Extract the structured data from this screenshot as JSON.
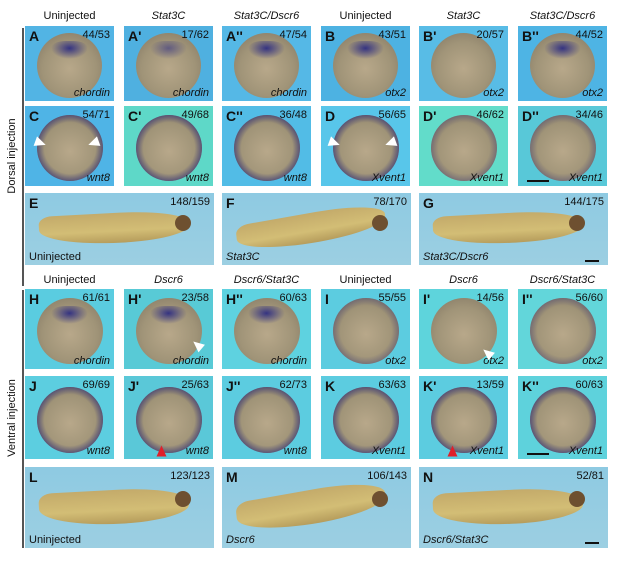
{
  "dorsal": {
    "section_label": "Dorsal injection",
    "column_headers": [
      "Uninjected",
      "Stat3C",
      "Stat3C/Dscr6",
      "Uninjected",
      "Stat3C",
      "Stat3C/Dscr6"
    ],
    "embryo_panels": [
      {
        "letter": "A",
        "count": "44/53",
        "gene": "chordin"
      },
      {
        "letter": "A'",
        "count": "17/62",
        "gene": "chordin"
      },
      {
        "letter": "A''",
        "count": "47/54",
        "gene": "chordin"
      },
      {
        "letter": "B",
        "count": "43/51",
        "gene": "otx2"
      },
      {
        "letter": "B'",
        "count": "20/57",
        "gene": "otx2"
      },
      {
        "letter": "B''",
        "count": "44/52",
        "gene": "otx2"
      },
      {
        "letter": "C",
        "count": "54/71",
        "gene": "wnt8"
      },
      {
        "letter": "C'",
        "count": "49/68",
        "gene": "wnt8"
      },
      {
        "letter": "C''",
        "count": "36/48",
        "gene": "wnt8"
      },
      {
        "letter": "D",
        "count": "56/65",
        "gene": "Xvent1"
      },
      {
        "letter": "D'",
        "count": "46/62",
        "gene": "Xvent1"
      },
      {
        "letter": "D''",
        "count": "34/46",
        "gene": "Xvent1"
      }
    ],
    "tadpole_panels": [
      {
        "letter": "E",
        "count": "148/159",
        "label": "Uninjected"
      },
      {
        "letter": "F",
        "count": "78/170",
        "label": "Stat3C"
      },
      {
        "letter": "G",
        "count": "144/175",
        "label": "Stat3C/Dscr6"
      }
    ]
  },
  "ventral": {
    "section_label": "Ventral injection",
    "column_headers": [
      "Uninjected",
      "Dscr6",
      "Dscr6/Stat3C",
      "Uninjected",
      "Dscr6",
      "Dscr6/Stat3C"
    ],
    "embryo_panels": [
      {
        "letter": "H",
        "count": "61/61",
        "gene": "chordin"
      },
      {
        "letter": "H'",
        "count": "23/58",
        "gene": "chordin"
      },
      {
        "letter": "H''",
        "count": "60/63",
        "gene": "chordin"
      },
      {
        "letter": "I",
        "count": "55/55",
        "gene": "otx2"
      },
      {
        "letter": "I'",
        "count": "14/56",
        "gene": "otx2"
      },
      {
        "letter": "I''",
        "count": "56/60",
        "gene": "otx2"
      },
      {
        "letter": "J",
        "count": "69/69",
        "gene": "wnt8"
      },
      {
        "letter": "J'",
        "count": "25/63",
        "gene": "wnt8"
      },
      {
        "letter": "J''",
        "count": "62/73",
        "gene": "wnt8"
      },
      {
        "letter": "K",
        "count": "63/63",
        "gene": "Xvent1"
      },
      {
        "letter": "K'",
        "count": "13/59",
        "gene": "Xvent1"
      },
      {
        "letter": "K''",
        "count": "60/63",
        "gene": "Xvent1"
      }
    ],
    "tadpole_panels": [
      {
        "letter": "L",
        "count": "123/123",
        "label": "Uninjected"
      },
      {
        "letter": "M",
        "count": "106/143",
        "label": "Dscr6"
      },
      {
        "letter": "N",
        "count": "52/81",
        "label": "Dscr6/Stat3C"
      }
    ]
  },
  "colors": {
    "stain": "#3a3a8a",
    "arrow_white": "#ffffff",
    "arrow_red": "#e0202a"
  }
}
